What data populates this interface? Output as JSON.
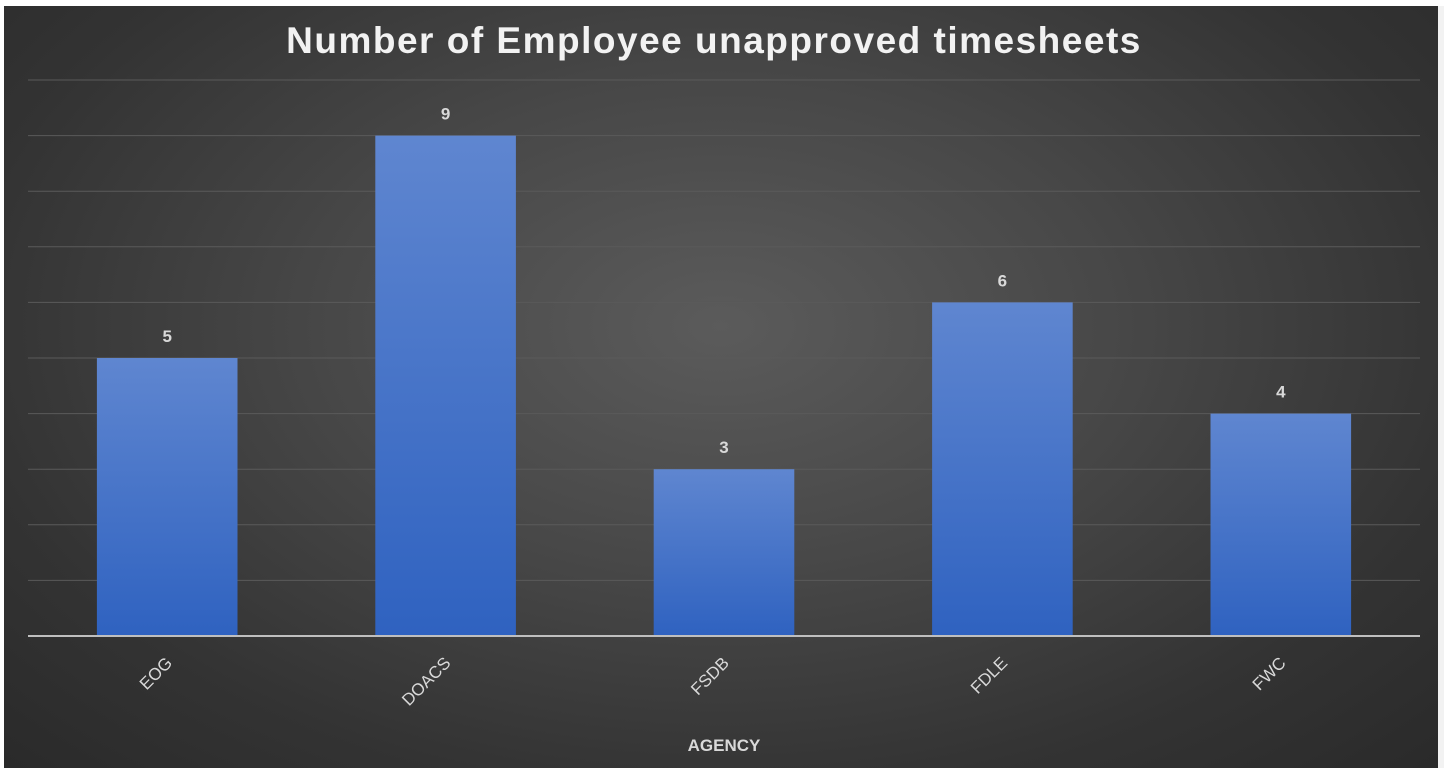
{
  "chart_data": {
    "type": "bar",
    "title": "Number of Employee unapproved timesheets",
    "xlabel": "AGENCY",
    "ylabel": "",
    "categories": [
      "EOG",
      "DOACS",
      "FSDB",
      "FDLE",
      "FWC"
    ],
    "values": [
      5,
      9,
      3,
      6,
      4
    ],
    "ylim": [
      0,
      10
    ],
    "grid": true,
    "legend": "none",
    "data_labels": true,
    "colors": {
      "bar_top": "#5f86d0",
      "bar_bottom": "#2f62c0",
      "background": "#404040",
      "gridline": "#5a5a5a",
      "axis": "#bfbfbf",
      "text": "#d9d9d9"
    }
  }
}
